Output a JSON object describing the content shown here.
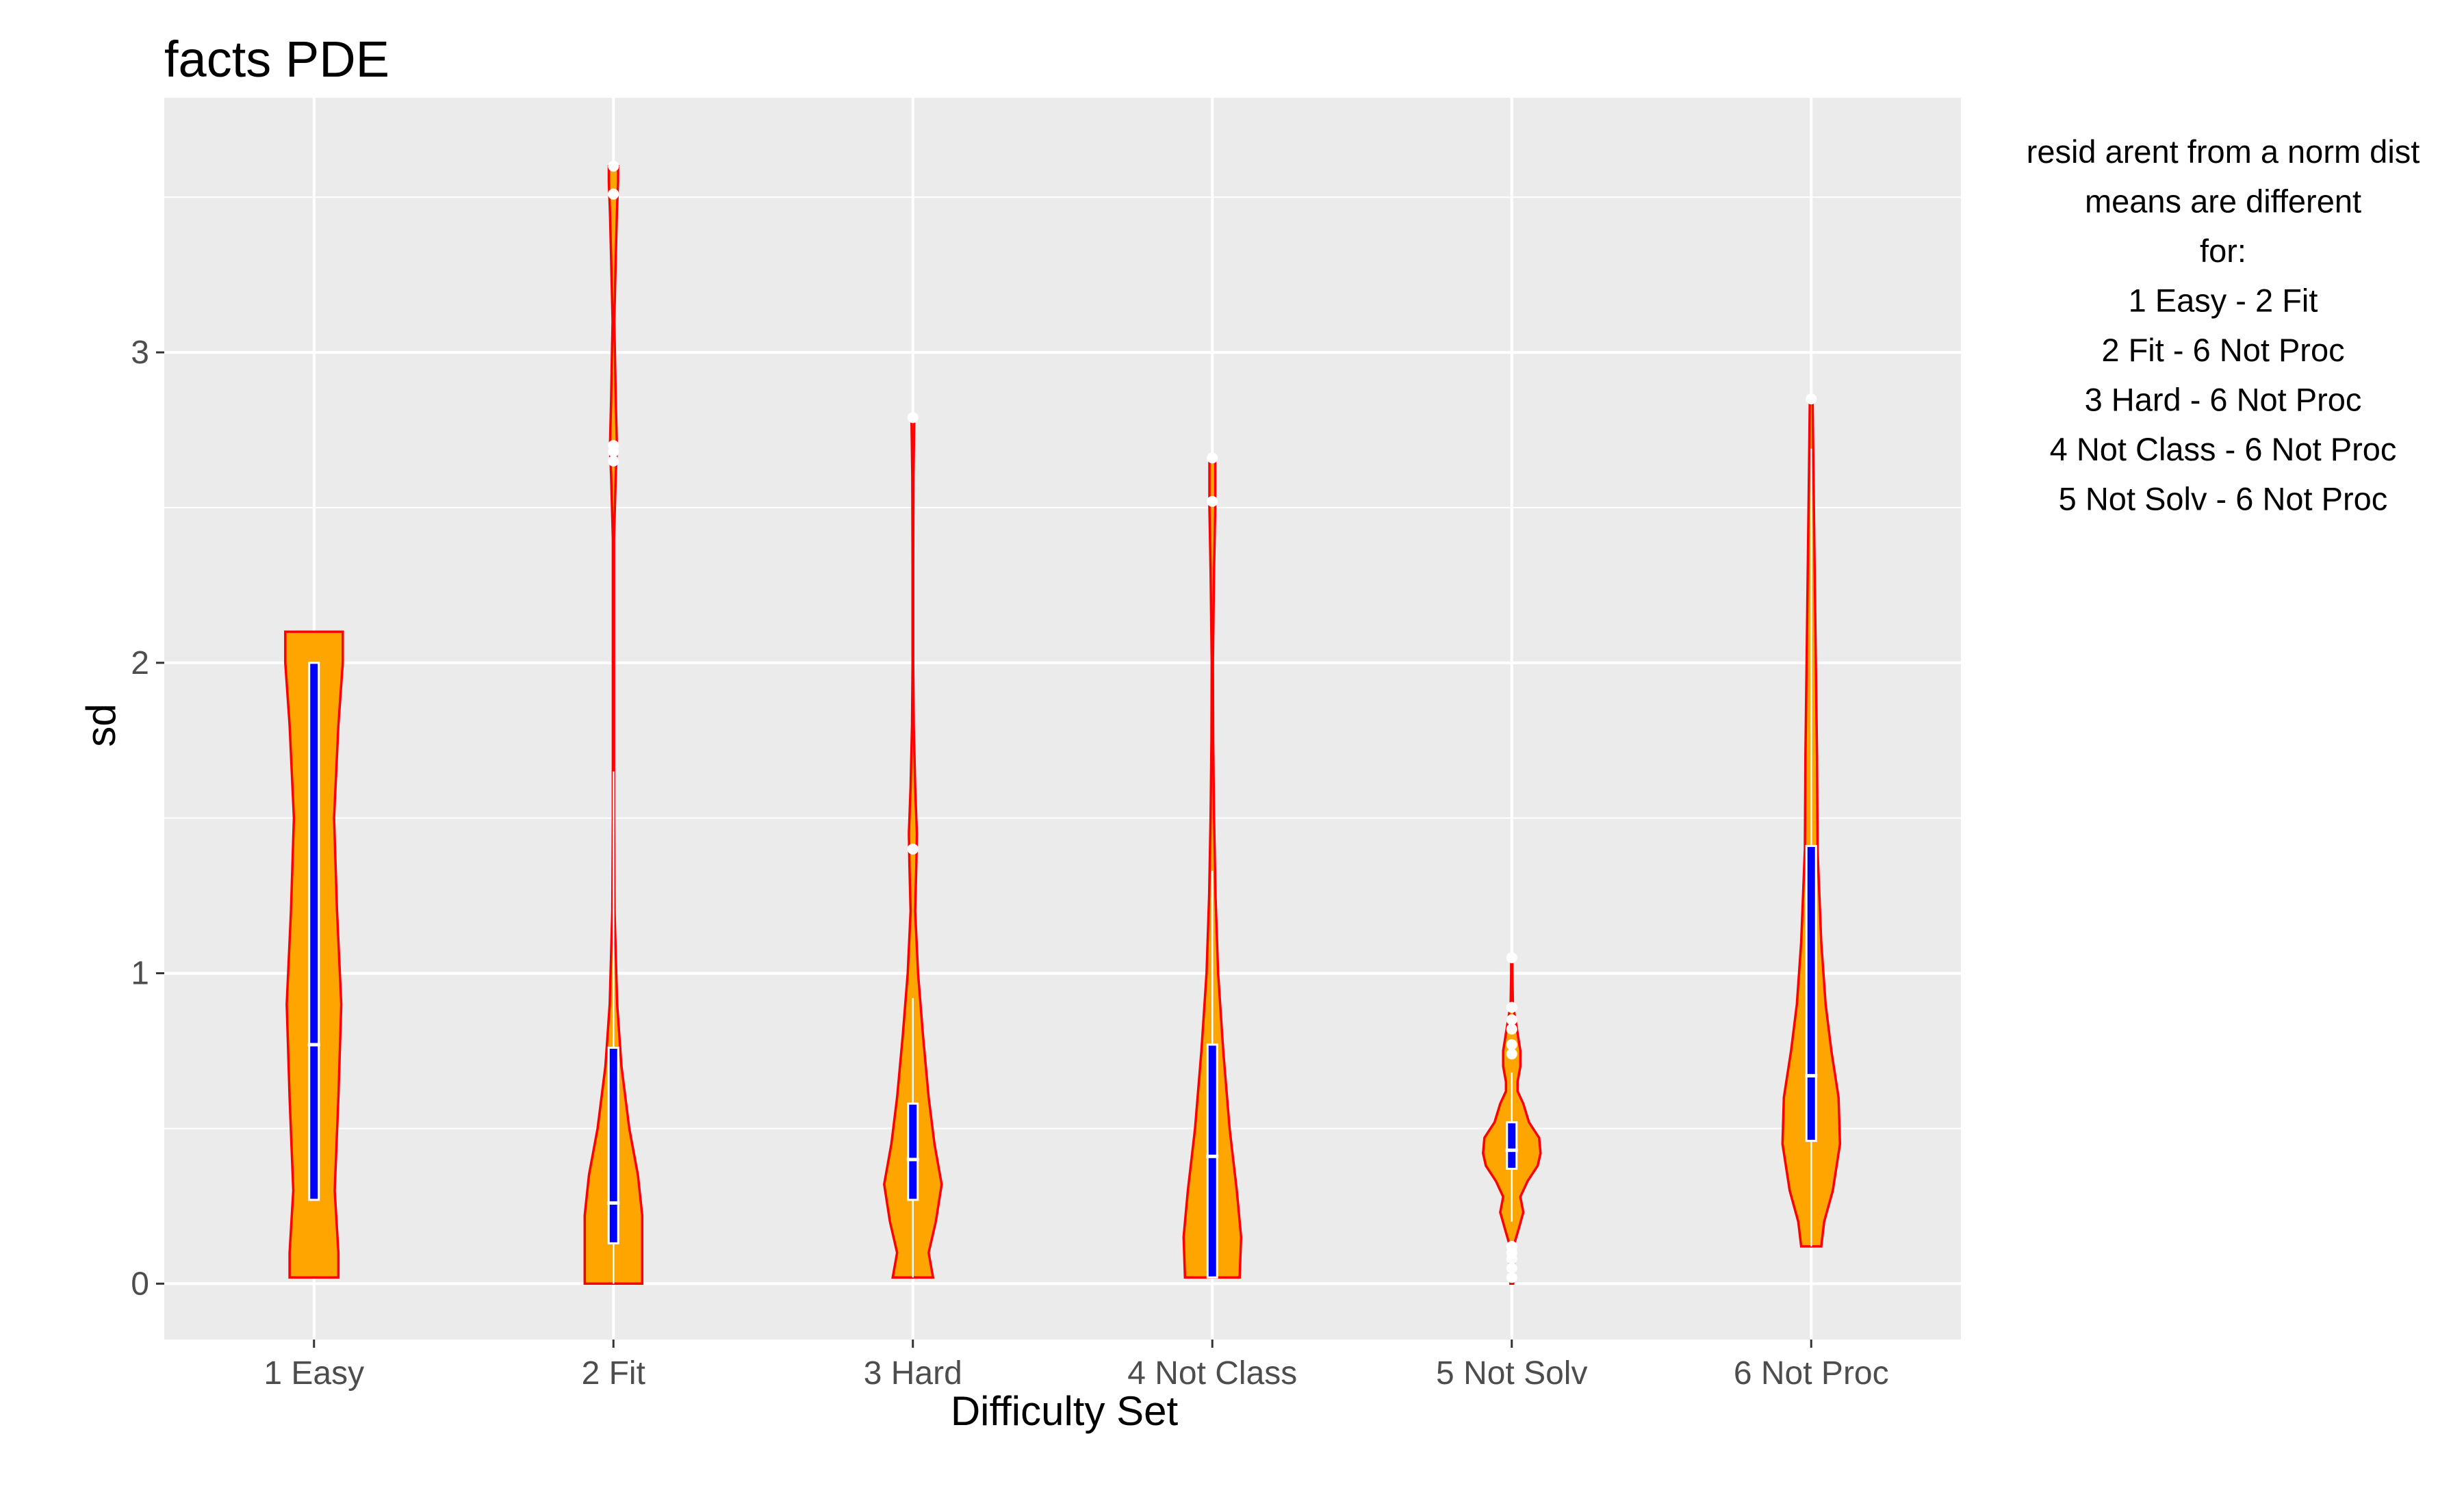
{
  "chart_data": {
    "type": "violin",
    "title": "facts PDE",
    "xlabel": "Difficulty Set",
    "ylabel": "sd",
    "categories": [
      "1 Easy",
      "2 Fit",
      "3 Hard",
      "4 Not Class",
      "5 Not Solv",
      "6 Not Proc"
    ],
    "y_ticks": [
      0,
      1,
      2,
      3
    ],
    "ylim": [
      -0.18,
      3.82
    ],
    "grid": true,
    "colors": {
      "panel": "#ebebeb",
      "grid": "#ffffff",
      "violin_fill": "#ffa500",
      "violin_outline": "#ff0000",
      "box_fill": "#0000ff",
      "box_outline": "#ffffff",
      "outlier": "#ffffff"
    },
    "violins": [
      {
        "name": "1 Easy",
        "range": [
          0.02,
          2.1
        ],
        "density": [
          [
            0.02,
            0.85
          ],
          [
            0.1,
            0.85
          ],
          [
            0.3,
            0.72
          ],
          [
            0.6,
            0.85
          ],
          [
            0.9,
            0.95
          ],
          [
            1.2,
            0.8
          ],
          [
            1.5,
            0.7
          ],
          [
            1.8,
            0.85
          ],
          [
            2.0,
            1.0
          ],
          [
            2.1,
            1.0
          ]
        ],
        "box": {
          "min": 0.27,
          "q1": 0.27,
          "median": 0.77,
          "q3": 2.0,
          "max": 2.0
        },
        "outliers": []
      },
      {
        "name": "2 Fit",
        "range": [
          0.0,
          3.6
        ],
        "density": [
          [
            0.0,
            1.0
          ],
          [
            0.1,
            1.0
          ],
          [
            0.22,
            1.0
          ],
          [
            0.35,
            0.85
          ],
          [
            0.5,
            0.55
          ],
          [
            0.7,
            0.28
          ],
          [
            0.9,
            0.13
          ],
          [
            1.2,
            0.04
          ],
          [
            1.5,
            0.02
          ],
          [
            1.8,
            0.02
          ],
          [
            2.1,
            0.02
          ],
          [
            2.4,
            0.02
          ],
          [
            2.6,
            0.08
          ],
          [
            2.7,
            0.12
          ],
          [
            2.85,
            0.08
          ],
          [
            3.0,
            0.05
          ],
          [
            3.1,
            0.03
          ],
          [
            3.3,
            0.08
          ],
          [
            3.45,
            0.12
          ],
          [
            3.55,
            0.16
          ],
          [
            3.6,
            0.16
          ]
        ],
        "box": {
          "min": 0.0,
          "q1": 0.13,
          "median": 0.26,
          "q3": 0.76,
          "max": 1.65
        },
        "outliers": [
          2.65,
          2.68,
          2.7,
          3.51,
          3.6
        ]
      },
      {
        "name": "3 Hard",
        "range": [
          0.02,
          2.79
        ],
        "density": [
          [
            0.02,
            0.7
          ],
          [
            0.1,
            0.55
          ],
          [
            0.2,
            0.8
          ],
          [
            0.32,
            1.0
          ],
          [
            0.45,
            0.75
          ],
          [
            0.6,
            0.55
          ],
          [
            0.8,
            0.35
          ],
          [
            1.0,
            0.18
          ],
          [
            1.2,
            0.08
          ],
          [
            1.35,
            0.12
          ],
          [
            1.45,
            0.14
          ],
          [
            1.6,
            0.08
          ],
          [
            1.8,
            0.03
          ],
          [
            2.0,
            0.01
          ],
          [
            2.3,
            0.01
          ],
          [
            2.6,
            0.02
          ],
          [
            2.79,
            0.05
          ]
        ],
        "box": {
          "min": 0.02,
          "q1": 0.27,
          "median": 0.4,
          "q3": 0.58,
          "max": 0.92
        },
        "outliers": [
          1.4,
          2.79
        ]
      },
      {
        "name": "4 Not Class",
        "range": [
          0.02,
          2.66
        ],
        "density": [
          [
            0.02,
            0.95
          ],
          [
            0.15,
            1.0
          ],
          [
            0.3,
            0.85
          ],
          [
            0.5,
            0.6
          ],
          [
            0.75,
            0.38
          ],
          [
            1.0,
            0.2
          ],
          [
            1.25,
            0.11
          ],
          [
            1.5,
            0.06
          ],
          [
            1.75,
            0.03
          ],
          [
            2.0,
            0.02
          ],
          [
            2.3,
            0.06
          ],
          [
            2.5,
            0.1
          ],
          [
            2.66,
            0.1
          ]
        ],
        "box": {
          "min": 0.02,
          "q1": 0.02,
          "median": 0.41,
          "q3": 0.77,
          "max": 1.33
        },
        "outliers": [
          2.52,
          2.66
        ]
      },
      {
        "name": "5 Not Solv",
        "range": [
          0.0,
          1.05
        ],
        "density": [
          [
            0.0,
            0.05
          ],
          [
            0.05,
            0.08
          ],
          [
            0.12,
            0.06
          ],
          [
            0.18,
            0.25
          ],
          [
            0.23,
            0.4
          ],
          [
            0.28,
            0.3
          ],
          [
            0.33,
            0.55
          ],
          [
            0.38,
            0.9
          ],
          [
            0.42,
            1.0
          ],
          [
            0.47,
            0.95
          ],
          [
            0.52,
            0.6
          ],
          [
            0.58,
            0.4
          ],
          [
            0.62,
            0.2
          ],
          [
            0.65,
            0.2
          ],
          [
            0.7,
            0.3
          ],
          [
            0.75,
            0.3
          ],
          [
            0.82,
            0.18
          ],
          [
            0.9,
            0.04
          ],
          [
            1.0,
            0.02
          ],
          [
            1.05,
            0.02
          ]
        ],
        "box": {
          "min": 0.2,
          "q1": 0.37,
          "median": 0.43,
          "q3": 0.52,
          "max": 0.68
        },
        "outliers": [
          0.02,
          0.05,
          0.08,
          0.1,
          0.12,
          0.74,
          0.77,
          0.82,
          0.85,
          0.89,
          1.05
        ]
      },
      {
        "name": "6 Not Proc",
        "range": [
          0.12,
          2.85
        ],
        "density": [
          [
            0.12,
            0.35
          ],
          [
            0.2,
            0.45
          ],
          [
            0.3,
            0.75
          ],
          [
            0.45,
            1.0
          ],
          [
            0.6,
            0.95
          ],
          [
            0.75,
            0.7
          ],
          [
            0.9,
            0.5
          ],
          [
            1.1,
            0.35
          ],
          [
            1.4,
            0.22
          ],
          [
            1.7,
            0.2
          ],
          [
            2.0,
            0.16
          ],
          [
            2.3,
            0.12
          ],
          [
            2.6,
            0.08
          ],
          [
            2.85,
            0.05
          ]
        ],
        "box": {
          "min": 0.12,
          "q1": 0.46,
          "median": 0.67,
          "q3": 1.41,
          "max": 2.69
        },
        "outliers": [
          2.85
        ]
      }
    ]
  },
  "annotation": {
    "lines": [
      "resid arent from a norm dist",
      "means are different",
      "for:",
      "1 Easy - 2 Fit",
      "2 Fit - 6 Not Proc",
      "3 Hard - 6 Not Proc",
      "4 Not Class - 6 Not Proc",
      "5 Not Solv - 6 Not Proc"
    ]
  }
}
